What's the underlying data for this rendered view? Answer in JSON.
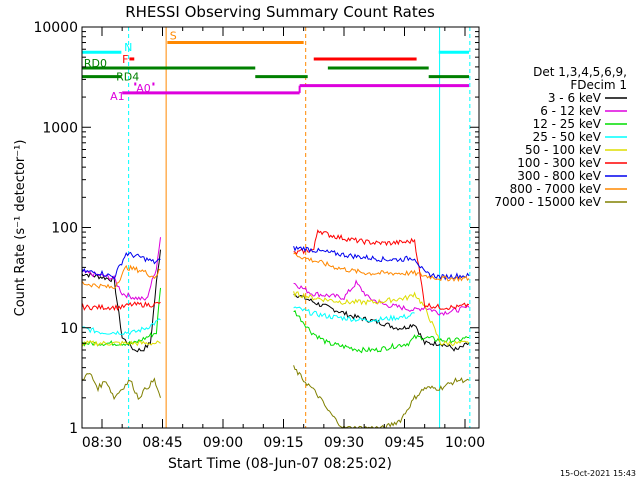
{
  "chart_data": {
    "type": "line",
    "title": "RHESSI Observing Summary Count Rates",
    "xlabel": "Start Time (08-Jun-07 08:25:02)",
    "ylabel": "Count Rate (s⁻¹ detector⁻¹)",
    "ylog": true,
    "ylim": [
      1,
      10000
    ],
    "xlim_minutes": [
      24.5,
      104
    ],
    "x_ticks": [
      {
        "m": 30,
        "label": "08:30"
      },
      {
        "m": 45,
        "label": "08:45"
      },
      {
        "m": 60,
        "label": "09:00"
      },
      {
        "m": 75,
        "label": "09:15"
      },
      {
        "m": 90,
        "label": "09:30"
      },
      {
        "m": 105,
        "label": "09:45"
      },
      {
        "m": 120,
        "label": "10:00"
      }
    ],
    "y_ticks": [
      {
        "v": 1,
        "label": "1"
      },
      {
        "v": 10,
        "label": "10"
      },
      {
        "v": 100,
        "label": "100"
      },
      {
        "v": 1000,
        "label": "1000"
      },
      {
        "v": 10000,
        "label": "10000"
      }
    ],
    "legend_header": [
      "Det 1,3,4,5,6,9,",
      "FDecim 1"
    ],
    "legend_placement": "right",
    "series": [
      {
        "name": "3 - 6 keV",
        "color": "#000000",
        "seg1": {
          "x": [
            24.5,
            30,
            33,
            35,
            36.5,
            38,
            40,
            42,
            43.5,
            44.5
          ],
          "y": [
            35,
            32,
            30,
            8,
            7,
            6,
            6,
            7,
            28,
            60
          ]
        },
        "seg2": {
          "x": [
            77.5,
            80,
            84,
            88,
            92,
            96,
            100,
            103,
            105,
            107.5,
            110,
            114,
            118,
            121
          ],
          "y": [
            22,
            20,
            17,
            15,
            13,
            12,
            11,
            10,
            10,
            11,
            7,
            7,
            6,
            7
          ]
        }
      },
      {
        "name": "6 - 12 keV",
        "color": "#dd00dd",
        "seg1": {
          "x": [
            24.5,
            30,
            33,
            35,
            38,
            41,
            43.5,
            44.5
          ],
          "y": [
            36,
            33,
            31,
            22,
            20,
            19,
            40,
            80
          ]
        },
        "seg2": {
          "x": [
            77.5,
            82,
            86,
            90,
            93,
            96,
            100,
            104,
            107.5,
            110,
            114,
            118,
            121
          ],
          "y": [
            28,
            22,
            21,
            20,
            28,
            20,
            17,
            16,
            15,
            16,
            14,
            15,
            16
          ]
        }
      },
      {
        "name": "12 - 25 keV",
        "color": "#00dd00",
        "seg1": {
          "x": [
            24.5,
            30,
            35,
            38,
            41,
            43.5,
            44.5
          ],
          "y": [
            7,
            7,
            7,
            7,
            8,
            9,
            25
          ]
        },
        "seg2": {
          "x": [
            77.5,
            82,
            86,
            90,
            94,
            98,
            102,
            106,
            107.5,
            110,
            114,
            118,
            121
          ],
          "y": [
            15,
            9,
            7,
            6.5,
            6,
            6,
            6.5,
            7,
            8,
            8,
            7.5,
            7.5,
            8
          ]
        }
      },
      {
        "name": "25 - 50 keV",
        "color": "#00ffff",
        "seg1": {
          "x": [
            24.5,
            30,
            35,
            38,
            41,
            44.5
          ],
          "y": [
            10,
            9,
            9,
            9,
            10,
            12
          ]
        },
        "seg2": {
          "x": [
            77.5,
            82,
            86,
            90,
            94,
            98,
            102,
            106,
            107.5
          ],
          "y": [
            16,
            14,
            13,
            12.5,
            12,
            12,
            12.5,
            13,
            14
          ]
        }
      },
      {
        "name": "50 - 100 keV",
        "color": "#dddd00",
        "seg1": {
          "x": [
            24.5,
            30,
            35,
            38,
            41,
            44.5
          ],
          "y": [
            7,
            7,
            7,
            7,
            7,
            7
          ]
        },
        "seg2": {
          "x": [
            77.5,
            80,
            82,
            86,
            90,
            94,
            98,
            102,
            106,
            107.5,
            110,
            114,
            118,
            121
          ],
          "y": [
            22,
            21,
            20,
            19,
            18,
            18,
            18,
            19,
            20,
            22,
            16,
            7,
            7,
            7
          ]
        }
      },
      {
        "name": "100 - 300 keV",
        "color": "#ff0000",
        "seg1": {
          "x": [
            24.5,
            30,
            35,
            37,
            40,
            43,
            44.5
          ],
          "y": [
            16,
            16,
            16,
            17,
            17,
            17,
            18
          ]
        },
        "seg2": {
          "x": [
            77.5,
            80,
            82.5,
            83.5,
            86,
            90,
            94,
            98,
            102,
            106,
            107.5,
            110,
            114,
            118,
            121
          ],
          "y": [
            55,
            58,
            60,
            95,
            85,
            78,
            73,
            70,
            70,
            72,
            75,
            17,
            16,
            16,
            17
          ]
        }
      },
      {
        "name": "300 - 800 keV",
        "color": "#0000ee",
        "seg1": {
          "x": [
            24.5,
            30,
            33,
            36,
            40,
            43,
            44.5
          ],
          "y": [
            37,
            35,
            32,
            55,
            50,
            45,
            48
          ]
        },
        "seg2": {
          "x": [
            77.5,
            80,
            84,
            88,
            92,
            96,
            100,
            104,
            107.5,
            110,
            114,
            118,
            121
          ],
          "y": [
            62,
            62,
            58,
            55,
            52,
            50,
            48,
            48,
            50,
            35,
            32,
            33,
            33
          ]
        }
      },
      {
        "name": "800 - 7000 keV",
        "color": "#ff8800",
        "seg1": {
          "x": [
            24.5,
            30,
            33,
            36,
            40,
            43,
            44.5
          ],
          "y": [
            28,
            26,
            25,
            40,
            37,
            32,
            38
          ]
        },
        "seg2": {
          "x": [
            77.5,
            80,
            84,
            88,
            92,
            96,
            100,
            104,
            107.5,
            110,
            114,
            118,
            121
          ],
          "y": [
            55,
            50,
            45,
            40,
            37,
            35,
            35,
            35,
            35,
            33,
            31,
            31,
            31
          ]
        }
      },
      {
        "name": "7000 - 15000 keV",
        "color": "#808000",
        "seg1": {
          "x": [
            24.5,
            27,
            29,
            31,
            33,
            35,
            37,
            39,
            41,
            43,
            44.5
          ],
          "y": [
            3,
            3.5,
            2.5,
            3,
            2,
            2.5,
            3,
            2,
            2.5,
            3,
            2
          ]
        },
        "seg2": {
          "x": [
            77.5,
            80,
            82,
            84,
            86,
            88,
            90,
            95,
            100,
            104,
            106,
            107.5,
            110,
            114,
            118,
            121
          ],
          "y": [
            4,
            3,
            2.5,
            2,
            1.5,
            1.2,
            1,
            1,
            1,
            1.2,
            1.6,
            2,
            2.5,
            2.5,
            3,
            3
          ]
        }
      }
    ],
    "flag_bars": [
      {
        "label": "N",
        "color": "#00ffff",
        "segments": [
          [
            24.5,
            34.8,
            5600
          ],
          [
            113.5,
            121,
            5600
          ]
        ]
      },
      {
        "label": "S",
        "color": "#ff8800",
        "segments": [
          [
            46.2,
            80,
            7000
          ]
        ]
      },
      {
        "label": "F",
        "color": "#ff0000",
        "segments": [
          [
            36.8,
            38,
            4800
          ],
          [
            82.5,
            108,
            4800
          ]
        ]
      },
      {
        "label": "RD0",
        "color": "#008000",
        "segments": [
          [
            24.5,
            68,
            3900
          ],
          [
            86,
            111,
            3900
          ]
        ]
      },
      {
        "label": "RD4",
        "color": "#008000",
        "segments": [
          [
            24.5,
            34.8,
            3200
          ],
          [
            68,
            81,
            3200
          ],
          [
            111,
            121,
            3200
          ]
        ]
      },
      {
        "label": "A0",
        "color": "#dd00dd",
        "segments": [
          [
            38,
            38.5,
            2700
          ],
          [
            42.5,
            43,
            2700
          ]
        ]
      },
      {
        "label": "A1",
        "color": "#dd00dd",
        "segments": [
          [
            35,
            79,
            2200
          ],
          [
            79,
            121,
            2600
          ]
        ]
      }
    ],
    "vlines": [
      {
        "m": 36.6,
        "color": "#00ffff",
        "dash": true
      },
      {
        "m": 45.9,
        "color": "#ff8800",
        "dash": false
      },
      {
        "m": 80.5,
        "color": "#ff8800",
        "dash": true
      },
      {
        "m": 113.7,
        "color": "#00ffff",
        "dash": false
      },
      {
        "m": 121.2,
        "color": "#00ffff",
        "dash": true
      }
    ],
    "footer_date": "15-Oct-2021 15:43"
  }
}
